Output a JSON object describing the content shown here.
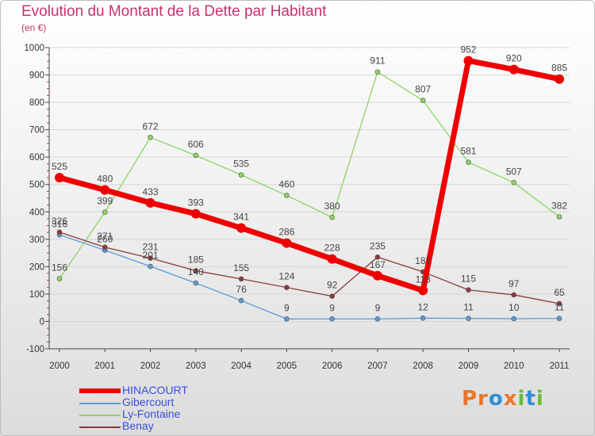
{
  "title": "Evolution du Montant de la Dette par Habitant",
  "unit": "(en €)",
  "logo": "Proxiti",
  "chart_data": {
    "type": "line",
    "x": [
      "2000",
      "2001",
      "2002",
      "2003",
      "2004",
      "2005",
      "2006",
      "2007",
      "2008",
      "2009",
      "2010",
      "2011"
    ],
    "yticks": [
      -100,
      0,
      100,
      200,
      300,
      400,
      500,
      600,
      700,
      800,
      900,
      1000
    ],
    "ylim": [
      -100,
      1000
    ],
    "series": [
      {
        "name": "HINACOURT",
        "color": "#ee0000",
        "values": [
          525,
          480,
          433,
          393,
          341,
          286,
          228,
          167,
          113,
          952,
          920,
          885
        ]
      },
      {
        "name": "Gibercourt",
        "color": "#5b9bd5",
        "values": [
          316,
          260,
          201,
          140,
          76,
          9,
          9,
          9,
          12,
          11,
          10,
          11
        ]
      },
      {
        "name": "Ly-Fontaine",
        "color": "#8cd462",
        "values": [
          156,
          399,
          672,
          606,
          535,
          460,
          380,
          911,
          807,
          581,
          507,
          382
        ]
      },
      {
        "name": "Benay",
        "color": "#8b3a3a",
        "values": [
          326,
          271,
          231,
          185,
          155,
          124,
          92,
          235,
          181,
          115,
          97,
          65
        ]
      }
    ]
  }
}
